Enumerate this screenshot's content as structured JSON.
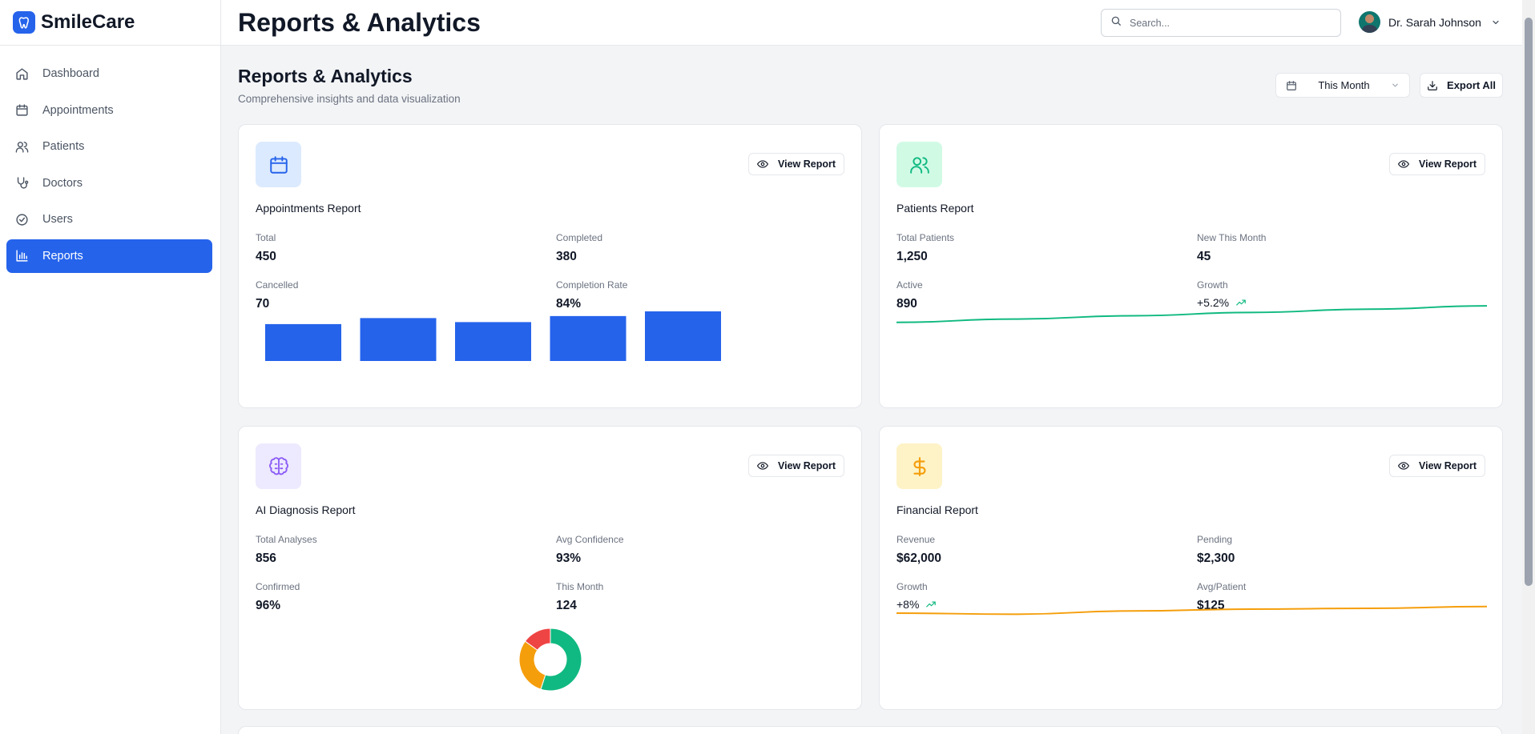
{
  "brand": {
    "name": "SmileCare"
  },
  "sidebar": {
    "items": [
      {
        "label": "Dashboard",
        "icon": "home-icon",
        "active": false
      },
      {
        "label": "Appointments",
        "icon": "calendar-icon",
        "active": false
      },
      {
        "label": "Patients",
        "icon": "users-icon",
        "active": false
      },
      {
        "label": "Doctors",
        "icon": "stethoscope-icon",
        "active": false
      },
      {
        "label": "Users",
        "icon": "check-circle-icon",
        "active": false
      },
      {
        "label": "Reports",
        "icon": "bar-chart-icon",
        "active": true
      }
    ]
  },
  "header": {
    "title": "Reports & Analytics",
    "search_placeholder": "Search...",
    "user_name": "Dr. Sarah Johnson"
  },
  "page": {
    "title": "Reports & Analytics",
    "subtitle": "Comprehensive insights and data visualization",
    "period_label": "This Month",
    "export_label": "Export All"
  },
  "colors": {
    "accent": "#2563eb",
    "success": "#10b981",
    "warning": "#f59e0b",
    "danger": "#ef4444",
    "purple": "#8b5cf6"
  },
  "cards": [
    {
      "title": "Appointments Report",
      "icon": "calendar-icon",
      "view_label": "View Report",
      "stats": [
        {
          "label": "Total",
          "value": "450"
        },
        {
          "label": "Completed",
          "value": "380"
        },
        {
          "label": "Cancelled",
          "value": "70"
        },
        {
          "label": "Completion Rate",
          "value": "84%"
        }
      ]
    },
    {
      "title": "Patients Report",
      "icon": "users-icon",
      "view_label": "View Report",
      "stats": [
        {
          "label": "Total Patients",
          "value": "1,250"
        },
        {
          "label": "New This Month",
          "value": "45"
        },
        {
          "label": "Active",
          "value": "890"
        },
        {
          "label": "Growth",
          "value": "+5.2%"
        }
      ]
    },
    {
      "title": "AI Diagnosis Report",
      "icon": "brain-icon",
      "view_label": "View Report",
      "stats": [
        {
          "label": "Total Analyses",
          "value": "856"
        },
        {
          "label": "Avg Confidence",
          "value": "93%"
        },
        {
          "label": "Confirmed",
          "value": "96%"
        },
        {
          "label": "This Month",
          "value": "124"
        }
      ]
    },
    {
      "title": "Financial Report",
      "icon": "dollar-icon",
      "view_label": "View Report",
      "stats": [
        {
          "label": "Revenue",
          "value": "$62,000"
        },
        {
          "label": "Pending",
          "value": "$2,300"
        },
        {
          "label": "Growth",
          "value": "+8%"
        },
        {
          "label": "Avg/Patient",
          "value": "$125"
        }
      ]
    }
  ],
  "chart_data": [
    {
      "type": "bar",
      "categories": [
        "1",
        "2",
        "3",
        "4",
        "5"
      ],
      "values": [
        55,
        64,
        58,
        67,
        74
      ],
      "ylim": [
        0,
        74
      ],
      "color": "#2563eb",
      "grid": false
    },
    {
      "type": "line",
      "x": [
        1,
        2,
        3,
        4,
        5,
        6
      ],
      "values": [
        100,
        102,
        104,
        106,
        108,
        110
      ],
      "ylim": [
        80,
        112
      ],
      "color": "#10b981",
      "grid": false
    },
    {
      "type": "pie",
      "donut": true,
      "values": [
        55,
        30,
        15
      ],
      "colors": [
        "#10b981",
        "#f59e0b",
        "#ef4444"
      ]
    },
    {
      "type": "line",
      "x": [
        1,
        2,
        3,
        4,
        5,
        6
      ],
      "values": [
        60,
        59.5,
        61,
        61.8,
        62.2,
        63
      ],
      "ylim": [
        40,
        64
      ],
      "color": "#f59e0b",
      "grid": false
    }
  ]
}
